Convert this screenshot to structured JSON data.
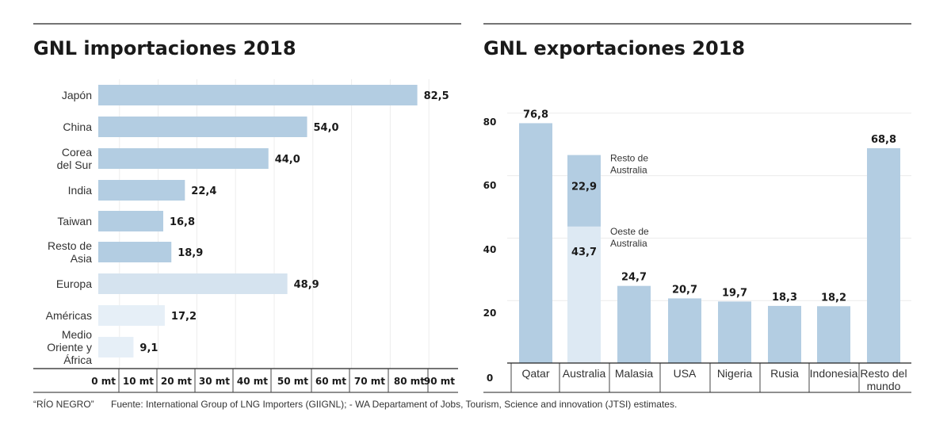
{
  "chart_data": [
    {
      "type": "bar",
      "orientation": "horizontal",
      "title": "GNL importaciones 2018",
      "categories": [
        "Japón",
        "China",
        "Corea del Sur",
        "India",
        "Taiwan",
        "Resto de Asia",
        "Europa",
        "Américas",
        "Medio Oriente y África"
      ],
      "values": [
        82.5,
        54.0,
        44.0,
        22.4,
        16.8,
        18.9,
        48.9,
        17.2,
        9.1
      ],
      "value_labels": [
        "82,5",
        "54,0",
        "44,0",
        "22,4",
        "16,8",
        "18,9",
        "48,9",
        "17,2",
        "9,1"
      ],
      "bar_colors": [
        "#b3cde2",
        "#b3cde2",
        "#b3cde2",
        "#b3cde2",
        "#b3cde2",
        "#b3cde2",
        "#d5e3ef",
        "#e6eff7",
        "#e6eff7"
      ],
      "tick_labels": [
        "0 mt",
        "10 mt",
        "20 mt",
        "30 mt",
        "40 mt",
        "50 mt",
        "60 mt",
        "70 mt",
        "80 mt",
        "90 mt"
      ],
      "xlim": [
        0,
        92
      ],
      "grid": true
    },
    {
      "type": "bar",
      "orientation": "vertical",
      "title": "GNL exportaciones 2018",
      "categories": [
        "Qatar",
        "Australia",
        "Malasia",
        "USA",
        "Nigeria",
        "Rusia",
        "Indonesia",
        "Resto del mundo"
      ],
      "values": [
        76.8,
        66.6,
        24.7,
        20.7,
        19.7,
        18.3,
        18.2,
        68.8
      ],
      "value_labels": [
        "76,8",
        "",
        "24,7",
        "20,7",
        "19,7",
        "18,3",
        "18,2",
        "68,8"
      ],
      "stacked_australia": [
        {
          "name": "Oeste de Australia",
          "value": 43.7,
          "label": "43,7",
          "color": "#dde9f3"
        },
        {
          "name": "Resto de Australia",
          "value": 22.9,
          "label": "22,9",
          "color": "#b3cde2"
        }
      ],
      "yticks": [
        "0",
        "20",
        "40",
        "60",
        "80"
      ],
      "ylim": [
        0,
        80
      ],
      "grid": true,
      "bar_color": "#b3cde2"
    }
  ],
  "footer": {
    "credit": "“RÍO NEGRO”",
    "source": "Fuente: International Group of LNG Importers (GIIGNL); - WA Departament of Jobs, Tourism, Science and innovation (JTSI) estimates."
  }
}
